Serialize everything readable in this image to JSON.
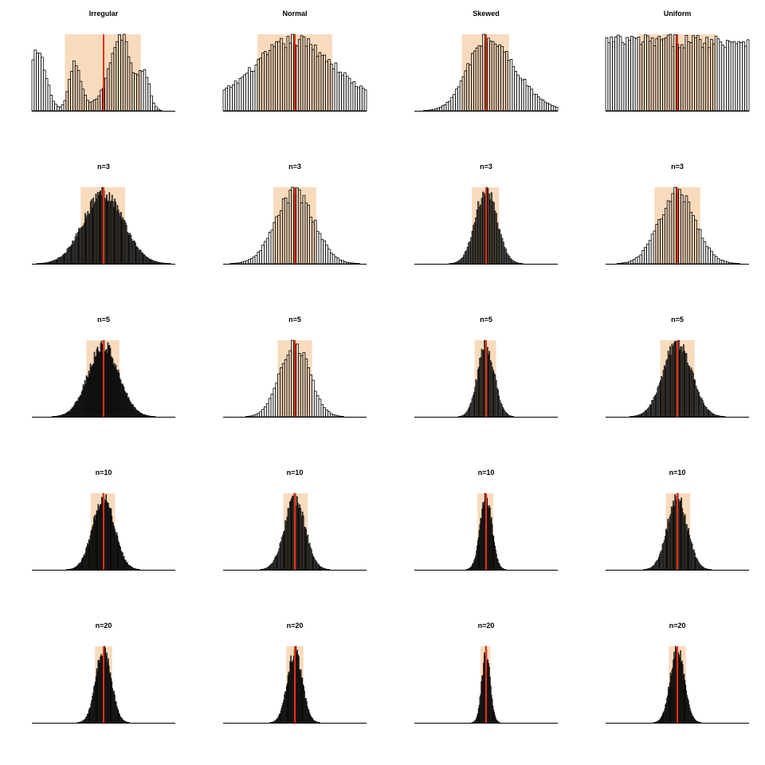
{
  "colors": {
    "band": "#f8dbbd",
    "mean_line": "#e8301a",
    "bar_stroke": "#000000",
    "bar_fill": "#ffffff",
    "axis": "#000000"
  },
  "layout": {
    "rows": 5,
    "columns": 4
  },
  "chart_data": [
    {
      "type": "bar",
      "title": "Irregular",
      "distribution": "irregular",
      "sample_size": 1,
      "x": [
        0,
        1
      ],
      "band": [
        0.23,
        0.76
      ],
      "mean": 0.5,
      "bins": 63
    },
    {
      "type": "bar",
      "title": "Normal",
      "distribution": "normal",
      "sample_size": 1,
      "x": [
        0,
        1
      ],
      "band": [
        0.24,
        0.76
      ],
      "mean": 0.5,
      "bins": 63
    },
    {
      "type": "bar",
      "title": "Skewed",
      "distribution": "skewed",
      "sample_size": 1,
      "x": [
        0,
        1
      ],
      "band": [
        0.33,
        0.66
      ],
      "mean": 0.5,
      "bins": 63
    },
    {
      "type": "bar",
      "title": "Uniform",
      "distribution": "uniform",
      "sample_size": 1,
      "x": [
        0,
        1
      ],
      "band": [
        0.23,
        0.77
      ],
      "mean": 0.5,
      "bins": 63
    },
    {
      "type": "bar",
      "title": "n=3",
      "distribution": "irregular",
      "sample_size": 3,
      "x": [
        0,
        1
      ],
      "band": [
        0.34,
        0.65
      ],
      "mean": 0.5,
      "bins": 160
    },
    {
      "type": "bar",
      "title": "n=3",
      "distribution": "normal",
      "sample_size": 3,
      "x": [
        0,
        1
      ],
      "band": [
        0.35,
        0.65
      ],
      "mean": 0.5,
      "bins": 63
    },
    {
      "type": "bar",
      "title": "n=3",
      "distribution": "skewed",
      "sample_size": 3,
      "x": [
        0,
        1
      ],
      "band": [
        0.4,
        0.59
      ],
      "mean": 0.5,
      "bins": 120
    },
    {
      "type": "bar",
      "title": "n=3",
      "distribution": "uniform",
      "sample_size": 3,
      "x": [
        0,
        1
      ],
      "band": [
        0.34,
        0.66
      ],
      "mean": 0.5,
      "bins": 63
    },
    {
      "type": "bar",
      "title": "n=5",
      "distribution": "irregular",
      "sample_size": 5,
      "x": [
        0,
        1
      ],
      "band": [
        0.38,
        0.61
      ],
      "mean": 0.5,
      "bins": 180
    },
    {
      "type": "bar",
      "title": "n=5",
      "distribution": "normal",
      "sample_size": 5,
      "x": [
        0,
        1
      ],
      "band": [
        0.38,
        0.62
      ],
      "mean": 0.5,
      "bins": 63
    },
    {
      "type": "bar",
      "title": "n=5",
      "distribution": "skewed",
      "sample_size": 5,
      "x": [
        0,
        1
      ],
      "band": [
        0.42,
        0.57
      ],
      "mean": 0.5,
      "bins": 150
    },
    {
      "type": "bar",
      "title": "n=5",
      "distribution": "uniform",
      "sample_size": 5,
      "x": [
        0,
        1
      ],
      "band": [
        0.38,
        0.62
      ],
      "mean": 0.5,
      "bins": 150
    },
    {
      "type": "bar",
      "title": "n=10",
      "distribution": "irregular",
      "sample_size": 10,
      "x": [
        0,
        1
      ],
      "band": [
        0.41,
        0.58
      ],
      "mean": 0.5,
      "bins": 200
    },
    {
      "type": "bar",
      "title": "n=10",
      "distribution": "normal",
      "sample_size": 10,
      "x": [
        0,
        1
      ],
      "band": [
        0.42,
        0.59
      ],
      "mean": 0.5,
      "bins": 160
    },
    {
      "type": "bar",
      "title": "n=10",
      "distribution": "skewed",
      "sample_size": 10,
      "x": [
        0,
        1
      ],
      "band": [
        0.44,
        0.55
      ],
      "mean": 0.5,
      "bins": 200
    },
    {
      "type": "bar",
      "title": "n=10",
      "distribution": "uniform",
      "sample_size": 10,
      "x": [
        0,
        1
      ],
      "band": [
        0.42,
        0.59
      ],
      "mean": 0.5,
      "bins": 160
    },
    {
      "type": "bar",
      "title": "n=20",
      "distribution": "irregular",
      "sample_size": 20,
      "x": [
        0,
        1
      ],
      "band": [
        0.44,
        0.56
      ],
      "mean": 0.5,
      "bins": 200
    },
    {
      "type": "bar",
      "title": "n=20",
      "distribution": "normal",
      "sample_size": 20,
      "x": [
        0,
        1
      ],
      "band": [
        0.44,
        0.56
      ],
      "mean": 0.5,
      "bins": 200
    },
    {
      "type": "bar",
      "title": "n=20",
      "distribution": "skewed",
      "sample_size": 20,
      "x": [
        0,
        1
      ],
      "band": [
        0.46,
        0.53
      ],
      "mean": 0.5,
      "bins": 200
    },
    {
      "type": "bar",
      "title": "n=20",
      "distribution": "uniform",
      "sample_size": 20,
      "x": [
        0,
        1
      ],
      "band": [
        0.44,
        0.56
      ],
      "mean": 0.5,
      "bins": 200
    }
  ]
}
